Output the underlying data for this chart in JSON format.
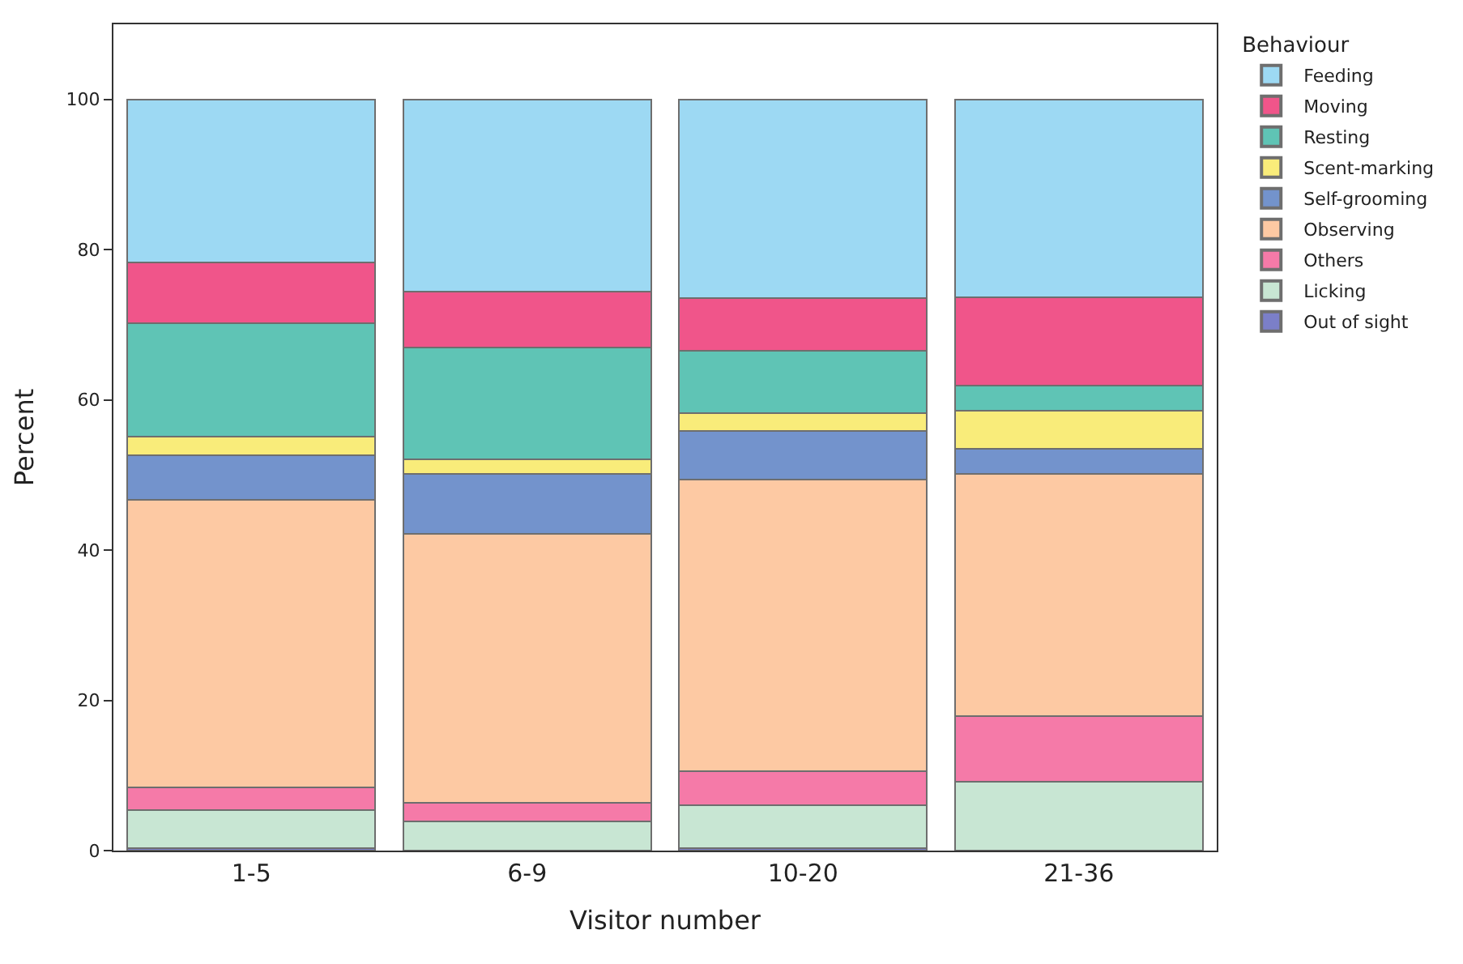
{
  "chart_data": {
    "type": "bar",
    "stacked": true,
    "xlabel": "Visitor number",
    "ylabel": "Percent",
    "legend_title": "Behaviour",
    "legend": "right",
    "categories": [
      "1-5",
      "6-9",
      "10-20",
      "21-36"
    ],
    "ylim": [
      0,
      110
    ],
    "yticks": [
      0,
      20,
      40,
      60,
      80,
      100
    ],
    "series": [
      {
        "name": "Out of sight",
        "color": "#7b7fc8",
        "values": [
          0.3,
          0,
          0.3,
          0
        ]
      },
      {
        "name": "Licking",
        "color": "#c8e6d3",
        "values": [
          5.1,
          3.9,
          5.7,
          9.2
        ]
      },
      {
        "name": "Others",
        "color": "#f57aa8",
        "values": [
          3.0,
          2.5,
          4.6,
          8.7
        ]
      },
      {
        "name": "Observing",
        "color": "#fdc9a3",
        "values": [
          38.3,
          35.8,
          38.8,
          32.3
        ]
      },
      {
        "name": "Self-grooming",
        "color": "#7393cc",
        "values": [
          5.9,
          7.9,
          6.5,
          3.3
        ]
      },
      {
        "name": "Scent-marking",
        "color": "#f9ec7a",
        "values": [
          2.5,
          2.0,
          2.3,
          5.1
        ]
      },
      {
        "name": "Resting",
        "color": "#5fc4b5",
        "values": [
          15.1,
          14.9,
          8.3,
          3.3
        ]
      },
      {
        "name": "Moving",
        "color": "#f0558a",
        "values": [
          8.1,
          7.4,
          7.0,
          11.8
        ]
      },
      {
        "name": "Feeding",
        "color": "#9dd9f3",
        "values": [
          21.7,
          25.6,
          26.5,
          26.3
        ]
      }
    ]
  }
}
